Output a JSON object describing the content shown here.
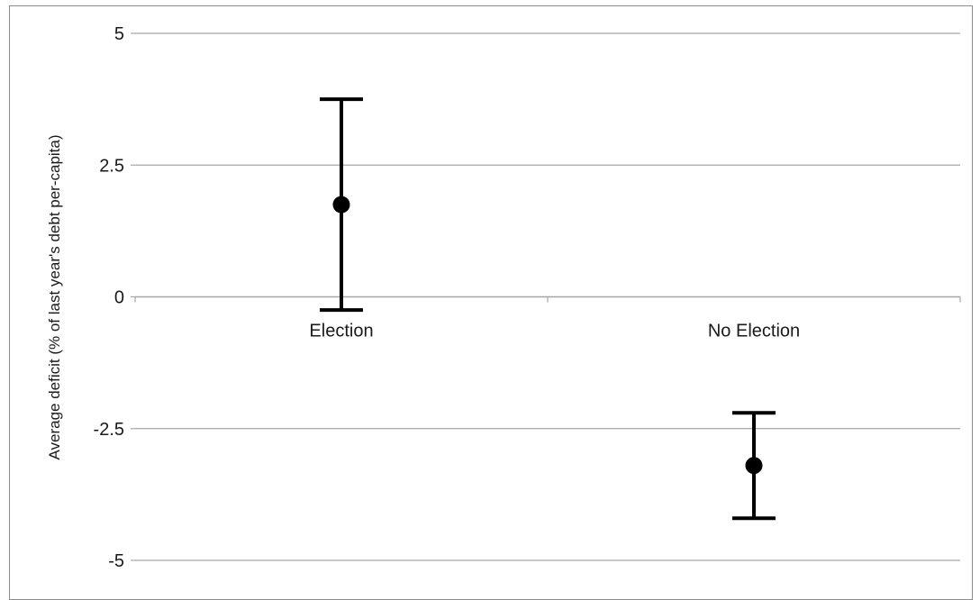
{
  "chart_data": {
    "type": "scatter",
    "title": "",
    "xlabel": "",
    "ylabel": "Average deficit (% of last year's debt  per-capita)",
    "categories": [
      "Election",
      "No Election"
    ],
    "series": [
      {
        "values": [
          1.75,
          -3.2
        ],
        "error_low": [
          -0.25,
          -4.2
        ],
        "error_high": [
          3.75,
          -2.2
        ]
      }
    ],
    "ylim": [
      -5,
      5
    ],
    "yticks": [
      5,
      2.5,
      0,
      -2.5,
      -5
    ],
    "ytick_labels": [
      "5",
      "2.5",
      "0",
      "-2.5",
      "-5"
    ],
    "grid": true,
    "legend": "none",
    "colors": {
      "marker": "#000000",
      "grid": "#a6a6a6",
      "axis": "#a6a6a6",
      "frame": "#8c8c8c"
    }
  }
}
